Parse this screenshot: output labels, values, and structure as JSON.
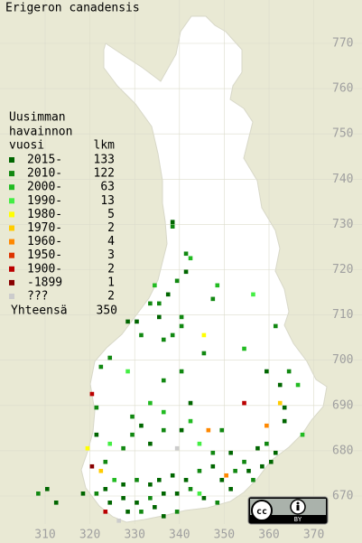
{
  "title": "Erigeron canadensis",
  "legend": {
    "header": [
      "Uusimman",
      "havainnon"
    ],
    "col_label": "vuosi",
    "col_count": "lkm",
    "entries": [
      {
        "label": "2015-",
        "count": 133,
        "color": "#006600"
      },
      {
        "label": "2010-",
        "count": 122,
        "color": "#118811"
      },
      {
        "label": "2000-",
        "count": 63,
        "color": "#22bb22"
      },
      {
        "label": "1990-",
        "count": 13,
        "color": "#44ee44"
      },
      {
        "label": "1980-",
        "count": 5,
        "color": "#ffff00"
      },
      {
        "label": "1970-",
        "count": 2,
        "color": "#ffcc00"
      },
      {
        "label": "1960-",
        "count": 4,
        "color": "#ff8800"
      },
      {
        "label": "1950-",
        "count": 3,
        "color": "#dd3300"
      },
      {
        "label": "1900-",
        "count": 2,
        "color": "#bb0000"
      },
      {
        "label": "-1899",
        "count": 1,
        "color": "#880000"
      },
      {
        "label": "???",
        "count": 2,
        "color": "#cccccc"
      }
    ],
    "total_label": "Yhteensä",
    "total": 350
  },
  "xticks": [
    310,
    320,
    330,
    340,
    350,
    360,
    370
  ],
  "yticks": [
    670,
    680,
    690,
    700,
    710,
    720,
    730,
    740,
    750,
    760,
    770
  ],
  "license": "BY",
  "occurrences": [
    [
      338,
      730,
      0
    ],
    [
      338,
      729,
      1
    ],
    [
      341,
      723,
      1
    ],
    [
      342,
      722,
      2
    ],
    [
      341,
      719,
      0
    ],
    [
      339,
      717,
      1
    ],
    [
      334,
      716,
      2
    ],
    [
      337,
      714,
      0
    ],
    [
      335,
      712,
      1
    ],
    [
      333,
      712,
      1
    ],
    [
      340,
      709,
      1
    ],
    [
      347,
      713,
      1
    ],
    [
      348,
      716,
      2
    ],
    [
      356,
      714,
      3
    ],
    [
      335,
      709,
      0
    ],
    [
      328,
      708,
      0
    ],
    [
      330,
      708,
      0
    ],
    [
      331,
      705,
      1
    ],
    [
      336,
      704,
      1
    ],
    [
      338,
      705,
      1
    ],
    [
      340,
      707,
      1
    ],
    [
      345,
      705,
      4
    ],
    [
      345,
      701,
      1
    ],
    [
      354,
      702,
      2
    ],
    [
      361,
      707,
      1
    ],
    [
      359,
      697,
      0
    ],
    [
      364,
      697,
      1
    ],
    [
      366,
      694,
      2
    ],
    [
      362,
      694,
      0
    ],
    [
      362,
      690,
      5
    ],
    [
      363,
      689,
      0
    ],
    [
      367,
      683,
      2
    ],
    [
      363,
      686,
      0
    ],
    [
      359,
      685,
      6
    ],
    [
      354,
      690,
      8
    ],
    [
      349,
      684,
      1
    ],
    [
      346,
      684,
      6
    ],
    [
      342,
      690,
      0
    ],
    [
      340,
      697,
      1
    ],
    [
      336,
      695,
      1
    ],
    [
      328,
      697,
      3
    ],
    [
      322,
      698,
      1
    ],
    [
      324,
      700,
      1
    ],
    [
      320,
      692,
      8
    ],
    [
      321,
      689,
      1
    ],
    [
      319,
      680,
      4
    ],
    [
      321,
      683,
      0
    ],
    [
      324,
      681,
      3
    ],
    [
      320,
      676,
      9
    ],
    [
      322,
      675,
      5
    ],
    [
      323,
      677,
      1
    ],
    [
      327,
      680,
      1
    ],
    [
      329,
      683,
      1
    ],
    [
      333,
      681,
      0
    ],
    [
      331,
      685,
      0
    ],
    [
      333,
      690,
      2
    ],
    [
      329,
      687,
      1
    ],
    [
      336,
      688,
      2
    ],
    [
      336,
      684,
      1
    ],
    [
      340,
      684,
      0
    ],
    [
      342,
      686,
      2
    ],
    [
      344,
      681,
      3
    ],
    [
      347,
      679,
      1
    ],
    [
      351,
      679,
      0
    ],
    [
      354,
      677,
      1
    ],
    [
      357,
      680,
      0
    ],
    [
      359,
      681,
      1
    ],
    [
      360,
      677,
      0
    ],
    [
      361,
      679,
      0
    ],
    [
      358,
      676,
      0
    ],
    [
      355,
      675,
      0
    ],
    [
      356,
      673,
      1
    ],
    [
      352,
      675,
      1
    ],
    [
      350,
      674,
      6
    ],
    [
      349,
      673,
      0
    ],
    [
      347,
      676,
      0
    ],
    [
      344,
      675,
      1
    ],
    [
      341,
      673,
      0
    ],
    [
      338,
      674,
      0
    ],
    [
      335,
      673,
      0
    ],
    [
      333,
      672,
      0
    ],
    [
      330,
      673,
      1
    ],
    [
      327,
      672,
      0
    ],
    [
      325,
      673,
      2
    ],
    [
      323,
      671,
      0
    ],
    [
      321,
      670,
      1
    ],
    [
      318,
      670,
      0
    ],
    [
      310,
      671,
      0
    ],
    [
      308,
      670,
      1
    ],
    [
      312,
      668,
      0
    ],
    [
      324,
      668,
      0
    ],
    [
      327,
      669,
      0
    ],
    [
      330,
      668,
      0
    ],
    [
      333,
      669,
      1
    ],
    [
      336,
      670,
      0
    ],
    [
      339,
      670,
      0
    ],
    [
      342,
      671,
      1
    ],
    [
      345,
      669,
      0
    ],
    [
      348,
      668,
      1
    ],
    [
      351,
      671,
      0
    ],
    [
      328,
      666,
      0
    ],
    [
      331,
      666,
      1
    ],
    [
      334,
      667,
      0
    ],
    [
      326,
      664,
      10
    ],
    [
      323,
      666,
      8
    ],
    [
      336,
      665,
      0
    ],
    [
      339,
      666,
      1
    ],
    [
      344,
      670,
      3
    ],
    [
      339,
      680,
      10
    ]
  ]
}
